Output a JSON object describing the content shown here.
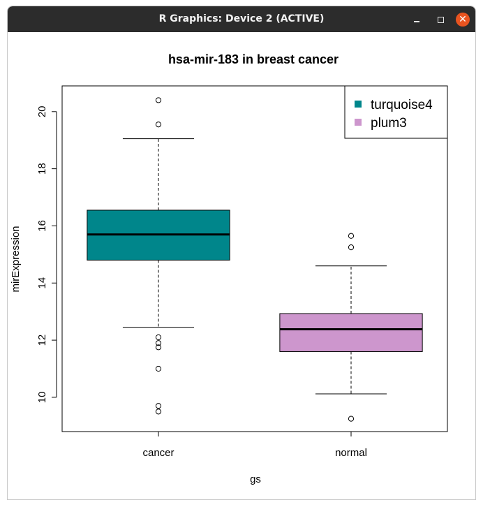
{
  "window": {
    "title": "R Graphics: Device 2 (ACTIVE)",
    "buttons": {
      "minimize_icon": "minimize-icon",
      "maximize_icon": "maximize-icon",
      "close_icon": "close-icon",
      "close_glyph": "✕"
    }
  },
  "chart_data": {
    "type": "box",
    "title": "hsa-mir-183 in breast cancer",
    "xlabel": "gs",
    "ylabel": "mirExpression",
    "categories": [
      "cancer",
      "normal"
    ],
    "ylim": [
      8.8,
      20.9
    ],
    "yticks": [
      10,
      12,
      14,
      16,
      18,
      20
    ],
    "boxes": [
      {
        "category": "cancer",
        "color": "#00868B",
        "whisker_low": 12.45,
        "q1": 14.8,
        "median": 15.7,
        "q3": 16.55,
        "whisker_high": 19.05,
        "outliers": [
          20.4,
          19.55,
          12.1,
          11.9,
          11.75,
          11.0,
          9.7,
          9.5
        ]
      },
      {
        "category": "normal",
        "color": "#CD96CD",
        "whisker_low": 10.12,
        "q1": 11.6,
        "median": 12.38,
        "q3": 12.93,
        "whisker_high": 14.6,
        "outliers": [
          15.65,
          15.25,
          9.25
        ]
      }
    ],
    "legend": {
      "position": "top-right",
      "entries": [
        {
          "label": "turquoise4",
          "color": "#00868B"
        },
        {
          "label": "plum3",
          "color": "#CD96CD"
        }
      ]
    },
    "grid": false
  }
}
